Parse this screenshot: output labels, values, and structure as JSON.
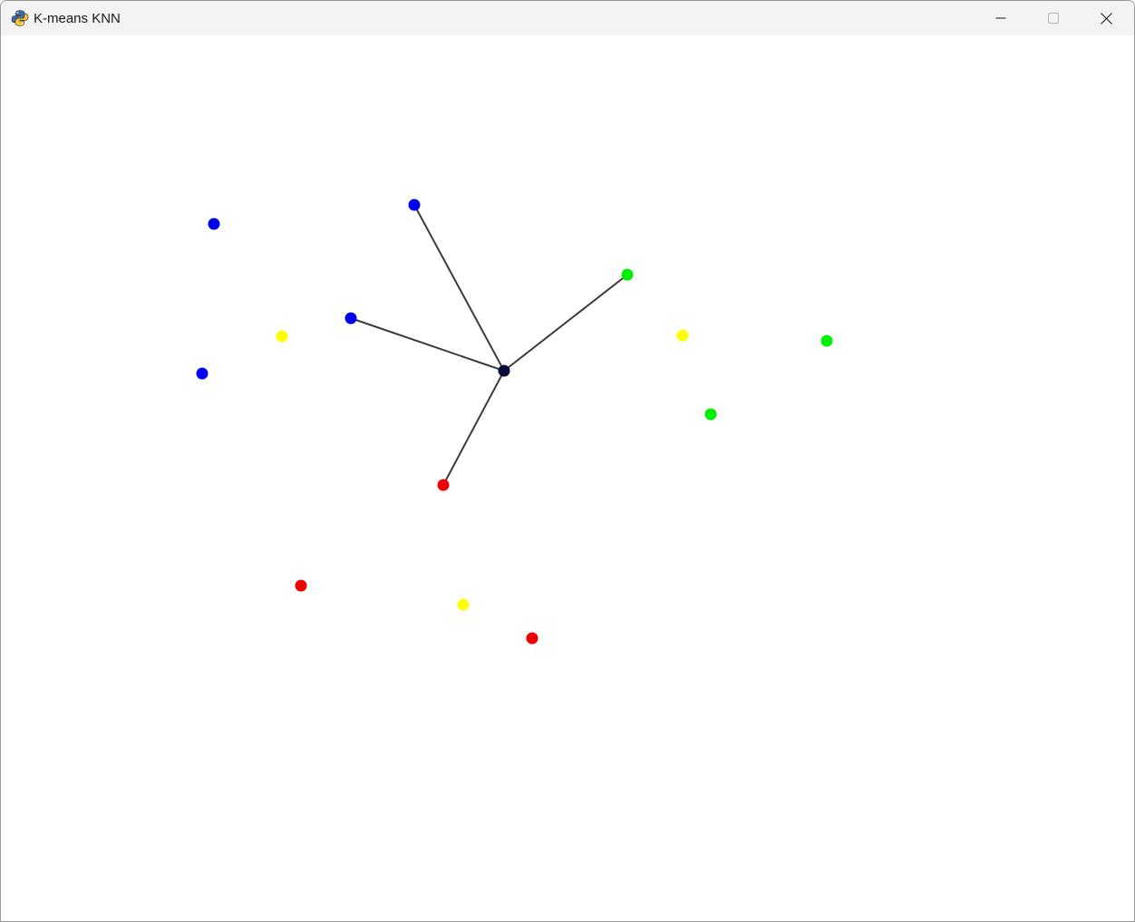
{
  "window": {
    "title": "K-means KNN",
    "app_icon": "python-snake-icon",
    "controls": [
      "minimize-icon",
      "maximize-icon",
      "close-icon"
    ]
  },
  "colors": {
    "blue": "#0000ee",
    "green": "#00ee00",
    "yellow": "#ffff00",
    "red": "#ee0000",
    "query": "#0a0a3a",
    "link": "#3c3c3c"
  },
  "canvas": {
    "query_point": {
      "label": "query-point",
      "color": "query"
    },
    "points": [
      {
        "label": "point-blue-1",
        "color": "blue"
      },
      {
        "label": "point-blue-2",
        "color": "blue"
      },
      {
        "label": "point-blue-3",
        "color": "blue"
      },
      {
        "label": "point-blue-4",
        "color": "blue"
      },
      {
        "label": "point-green-1",
        "color": "green"
      },
      {
        "label": "point-green-2",
        "color": "green"
      },
      {
        "label": "point-green-3",
        "color": "green"
      },
      {
        "label": "point-yellow-1",
        "color": "yellow"
      },
      {
        "label": "point-yellow-2",
        "color": "yellow"
      },
      {
        "label": "point-yellow-3",
        "color": "yellow"
      },
      {
        "label": "point-red-1",
        "color": "red"
      },
      {
        "label": "point-red-2",
        "color": "red"
      },
      {
        "label": "point-red-3",
        "color": "red"
      }
    ],
    "nearest_neighbors": [
      "point-blue-2",
      "point-blue-3",
      "point-green-1",
      "point-red-1"
    ],
    "k": 4
  }
}
